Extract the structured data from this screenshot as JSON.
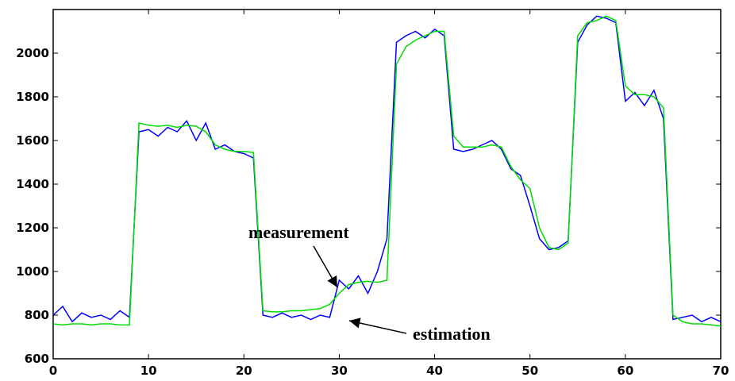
{
  "chart_data": {
    "type": "line",
    "x": [
      0,
      1,
      2,
      3,
      4,
      5,
      6,
      7,
      8,
      9,
      10,
      11,
      12,
      13,
      14,
      15,
      16,
      17,
      18,
      19,
      20,
      21,
      22,
      23,
      24,
      25,
      26,
      27,
      28,
      29,
      30,
      31,
      32,
      33,
      34,
      35,
      36,
      37,
      38,
      39,
      40,
      41,
      42,
      43,
      44,
      45,
      46,
      47,
      48,
      49,
      50,
      51,
      52,
      53,
      54,
      55,
      56,
      57,
      58,
      59,
      60,
      61,
      62,
      63,
      64,
      65,
      66,
      67,
      68,
      69,
      70
    ],
    "series": [
      {
        "color": "#0000ff",
        "values": [
          800,
          840,
          770,
          810,
          790,
          800,
          780,
          820,
          790,
          1640,
          1650,
          1620,
          1660,
          1640,
          1690,
          1600,
          1680,
          1560,
          1580,
          1550,
          1540,
          1520,
          800,
          790,
          810,
          790,
          800,
          780,
          800,
          790,
          960,
          920,
          980,
          900,
          1000,
          1150,
          2050,
          2080,
          2100,
          2070,
          2110,
          2080,
          1560,
          1550,
          1560,
          1580,
          1600,
          1560,
          1470,
          1440,
          1300,
          1150,
          1100,
          1110,
          1140,
          2050,
          2130,
          2170,
          2160,
          2140,
          1780,
          1820,
          1760,
          1830,
          1700,
          780,
          790,
          800,
          770,
          790,
          770
        ]
      },
      {
        "color": "#00dd00",
        "values": [
          760,
          755,
          760,
          760,
          755,
          760,
          760,
          755,
          755,
          1680,
          1670,
          1665,
          1670,
          1660,
          1670,
          1665,
          1640,
          1580,
          1560,
          1550,
          1550,
          1545,
          820,
          815,
          815,
          820,
          820,
          825,
          830,
          850,
          900,
          940,
          950,
          955,
          950,
          960,
          1950,
          2030,
          2060,
          2080,
          2100,
          2100,
          1620,
          1570,
          1570,
          1570,
          1580,
          1570,
          1480,
          1420,
          1380,
          1200,
          1110,
          1100,
          1130,
          2080,
          2140,
          2150,
          2170,
          2150,
          1850,
          1810,
          1810,
          1800,
          1750,
          800,
          770,
          760,
          760,
          755,
          750
        ]
      }
    ],
    "annotations": [
      "measurement",
      "estimation"
    ],
    "xlim": [
      0,
      70
    ],
    "xticks": [
      0,
      10,
      20,
      30,
      40,
      50,
      60,
      70
    ],
    "ylim": [
      600,
      2200
    ],
    "yticks": [
      600,
      800,
      1000,
      1200,
      1400,
      1600,
      1800,
      2000
    ]
  }
}
